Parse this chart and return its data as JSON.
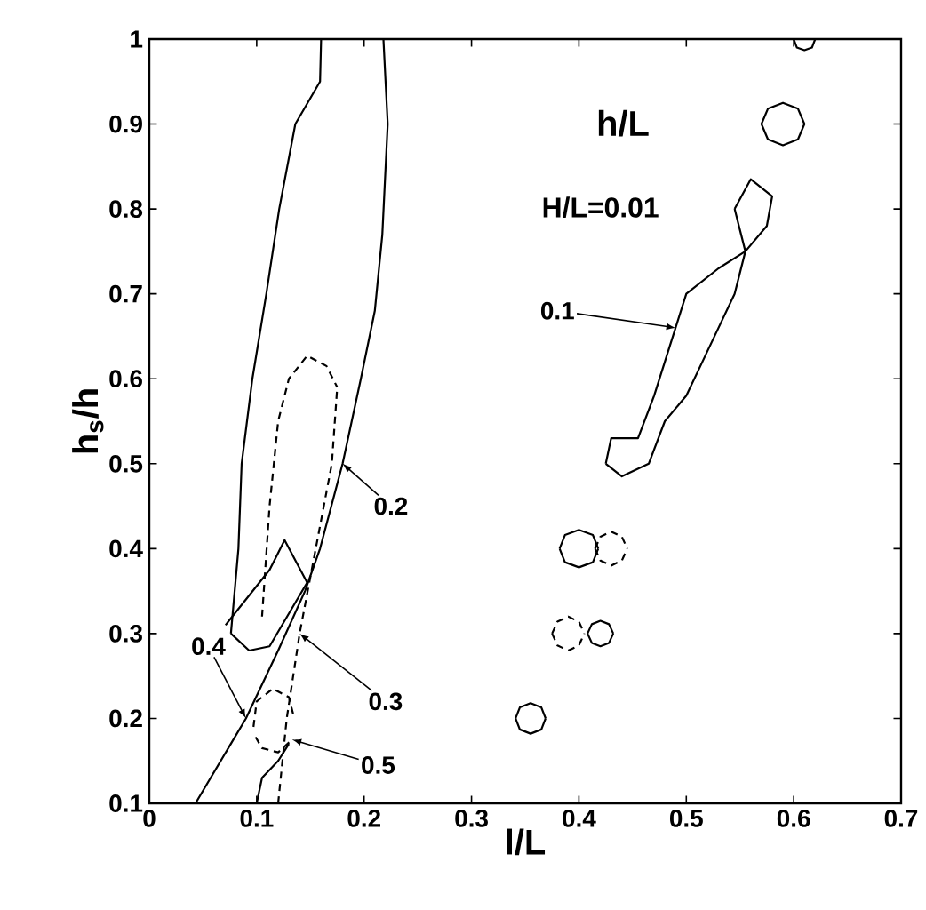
{
  "chart_data": {
    "type": "line",
    "xlabel": "l/L",
    "ylabel": "h$_{s}$/h",
    "xlim": [
      0,
      0.7
    ],
    "ylim": [
      0.1,
      1
    ],
    "xticks": [
      0,
      0.1,
      0.2,
      0.3,
      0.4,
      0.5,
      0.6,
      0.7
    ],
    "yticks": [
      0.1,
      0.2,
      0.3,
      0.4,
      0.5,
      0.6,
      0.7,
      0.8,
      0.9,
      1
    ],
    "marker": "none",
    "series": [
      {
        "color": "#000000",
        "line_style": "solid",
        "x": [
          0.076,
          0.083,
          0.086,
          0.096,
          0.109,
          0.121,
          0.136,
          0.159,
          0.16
        ],
        "values": [
          0.3,
          0.4,
          0.5,
          0.6,
          0.7,
          0.8,
          0.9,
          0.95,
          1
        ]
      },
      {
        "color": "#000000",
        "line_style": "solid",
        "x": [
          0.076,
          0.093,
          0.112,
          0.147
        ],
        "values": [
          0.3,
          0.28,
          0.285,
          0.36
        ]
      },
      {
        "color": "#000000",
        "line_style": "solid",
        "x": [
          0.071,
          0.112,
          0.118,
          0.126,
          0.147
        ],
        "values": [
          0.31,
          0.375,
          0.39,
          0.41,
          0.36
        ]
      },
      {
        "color": "#000000",
        "line_style": "solid",
        "x": [
          0.218,
          0.222,
          0.217,
          0.21,
          0.197,
          0.18,
          0.159,
          0.145,
          0.12,
          0.09,
          0.043
        ],
        "values": [
          1,
          0.9,
          0.77,
          0.68,
          0.6,
          0.5,
          0.4,
          0.35,
          0.28,
          0.2,
          0.1
        ]
      },
      {
        "color": "#000000",
        "line_style": "dashed",
        "x": [
          0.105,
          0.112,
          0.12,
          0.13,
          0.147,
          0.165,
          0.175
        ],
        "values": [
          0.32,
          0.45,
          0.55,
          0.6,
          0.627,
          0.615,
          0.59
        ]
      },
      {
        "color": "#000000",
        "line_style": "dashed",
        "x": [
          0.12,
          0.128,
          0.14,
          0.155,
          0.17,
          0.175
        ],
        "values": [
          0.1,
          0.2,
          0.3,
          0.4,
          0.5,
          0.59
        ]
      },
      {
        "color": "#000000",
        "line_style": "dashed",
        "x": [
          0.097,
          0.1,
          0.115,
          0.13,
          0.135
        ],
        "values": [
          0.19,
          0.22,
          0.235,
          0.225,
          0.2
        ]
      },
      {
        "color": "#000000",
        "line_style": "dashed",
        "x": [
          0.099,
          0.105,
          0.12,
          0.133
        ],
        "values": [
          0.178,
          0.165,
          0.16,
          0.175
        ]
      },
      {
        "color": "#000000",
        "line_style": "solid",
        "x": [
          0.1,
          0.105,
          0.12,
          0.13
        ],
        "values": [
          0.1,
          0.13,
          0.15,
          0.17
        ]
      },
      {
        "color": "#000000",
        "line_style": "solid",
        "x": [
          0.425,
          0.43,
          0.455,
          0.47,
          0.48,
          0.49,
          0.5,
          0.53,
          0.555
        ],
        "values": [
          0.5,
          0.53,
          0.53,
          0.58,
          0.62,
          0.66,
          0.7,
          0.73,
          0.75
        ]
      },
      {
        "color": "#000000",
        "line_style": "solid",
        "x": [
          0.425,
          0.44,
          0.465,
          0.48,
          0.5,
          0.515,
          0.53,
          0.545,
          0.555
        ],
        "values": [
          0.5,
          0.485,
          0.5,
          0.55,
          0.58,
          0.62,
          0.66,
          0.7,
          0.75
        ]
      },
      {
        "color": "#000000",
        "line_style": "solid",
        "x": [
          0.545,
          0.56,
          0.58
        ],
        "values": [
          0.8,
          0.835,
          0.815
        ]
      },
      {
        "color": "#000000",
        "line_style": "solid",
        "x": [
          0.545,
          0.555,
          0.575,
          0.58
        ],
        "values": [
          0.8,
          0.75,
          0.78,
          0.815
        ]
      },
      {
        "color": "#000000",
        "line_style": "solid",
        "x": [
          0.57,
          0.576,
          0.59,
          0.604,
          0.61
        ],
        "values": [
          0.9,
          0.918,
          0.925,
          0.918,
          0.9
        ]
      },
      {
        "color": "#000000",
        "line_style": "solid",
        "x": [
          0.57,
          0.576,
          0.59,
          0.604,
          0.61
        ],
        "values": [
          0.9,
          0.882,
          0.875,
          0.882,
          0.9
        ]
      },
      {
        "color": "#000000",
        "line_style": "solid",
        "x": [
          0.6,
          0.603,
          0.61,
          0.617,
          0.62
        ],
        "values": [
          1,
          0.99,
          0.987,
          0.99,
          1
        ]
      },
      {
        "color": "#000000",
        "line_style": "solid",
        "x": [
          0.382,
          0.387,
          0.4,
          0.413,
          0.418
        ],
        "values": [
          0.4,
          0.416,
          0.422,
          0.416,
          0.4
        ]
      },
      {
        "color": "#000000",
        "line_style": "solid",
        "x": [
          0.382,
          0.387,
          0.4,
          0.413,
          0.418
        ],
        "values": [
          0.4,
          0.384,
          0.378,
          0.384,
          0.4
        ]
      },
      {
        "color": "#000000",
        "line_style": "dashed",
        "x": [
          0.415,
          0.42,
          0.43,
          0.44,
          0.445
        ],
        "values": [
          0.4,
          0.414,
          0.42,
          0.414,
          0.4
        ]
      },
      {
        "color": "#000000",
        "line_style": "dashed",
        "x": [
          0.415,
          0.42,
          0.43,
          0.44,
          0.445
        ],
        "values": [
          0.4,
          0.386,
          0.38,
          0.386,
          0.4
        ]
      },
      {
        "color": "#000000",
        "line_style": "dashed",
        "x": [
          0.375,
          0.38,
          0.39,
          0.4,
          0.405
        ],
        "values": [
          0.3,
          0.314,
          0.32,
          0.314,
          0.3
        ]
      },
      {
        "color": "#000000",
        "line_style": "dashed",
        "x": [
          0.375,
          0.38,
          0.39,
          0.4,
          0.405
        ],
        "values": [
          0.3,
          0.286,
          0.28,
          0.286,
          0.3
        ]
      },
      {
        "color": "#000000",
        "line_style": "solid",
        "x": [
          0.408,
          0.412,
          0.42,
          0.428,
          0.432
        ],
        "values": [
          0.3,
          0.311,
          0.315,
          0.311,
          0.3
        ]
      },
      {
        "color": "#000000",
        "line_style": "solid",
        "x": [
          0.408,
          0.412,
          0.42,
          0.428,
          0.432
        ],
        "values": [
          0.3,
          0.289,
          0.285,
          0.289,
          0.3
        ]
      },
      {
        "color": "#000000",
        "line_style": "solid",
        "x": [
          0.341,
          0.345,
          0.355,
          0.365,
          0.369
        ],
        "values": [
          0.2,
          0.213,
          0.218,
          0.213,
          0.2
        ]
      },
      {
        "color": "#000000",
        "line_style": "solid",
        "x": [
          0.341,
          0.345,
          0.355,
          0.365,
          0.369
        ],
        "values": [
          0.2,
          0.187,
          0.182,
          0.187,
          0.2
        ]
      }
    ],
    "annotations": [
      "h/L",
      "H/L=0.01",
      {
        "text": "0.1",
        "x": 0.49,
        "y": 0.66
      },
      {
        "text": "0.2",
        "x": 0.18,
        "y": 0.5
      },
      {
        "text": "0.4",
        "x": 0.09,
        "y": 0.2
      },
      {
        "text": "0.3",
        "x": 0.14,
        "y": 0.3
      },
      {
        "text": "0.5",
        "x": 0.133,
        "y": 0.175
      }
    ]
  }
}
